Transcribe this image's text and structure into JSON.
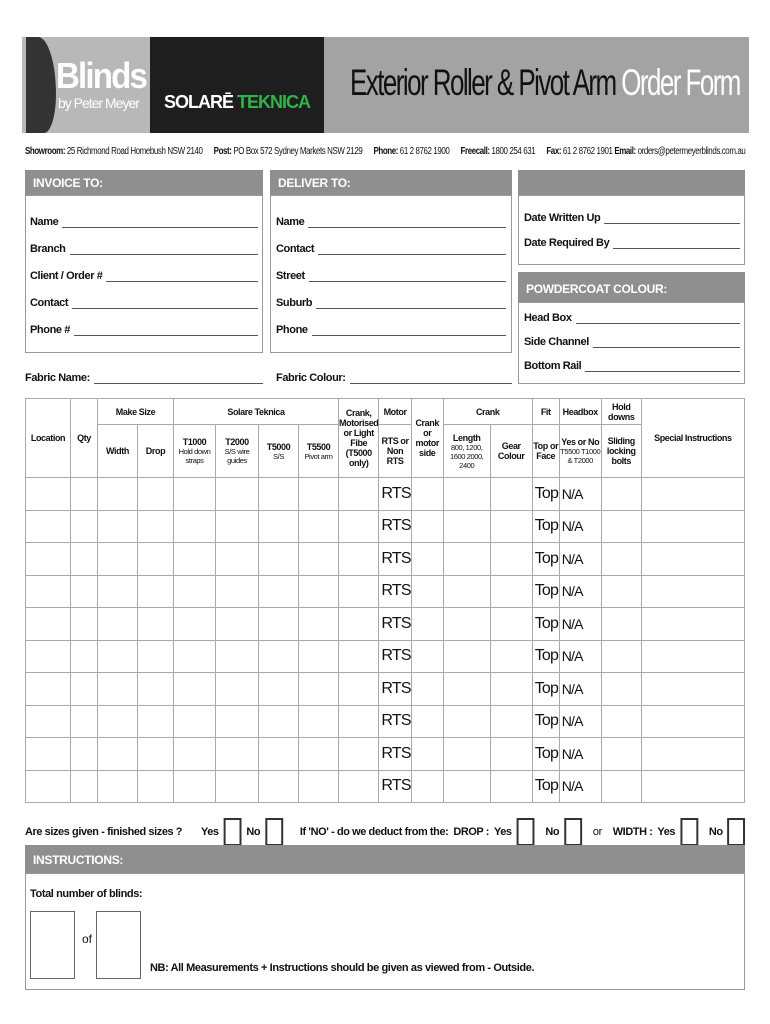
{
  "header": {
    "brand": "Blinds",
    "brand_sub": "by Peter Meyer",
    "partner_a": "SOLARĒ",
    "partner_b": "TEKNICA",
    "title_a": "Exterior Roller & Pivot Arm",
    "title_b": "Order Form"
  },
  "contact": {
    "showroom_label": "Showroom:",
    "showroom": "25 Richmond Road Homebush NSW 2140",
    "post_label": "Post:",
    "post": "PO Box 572 Sydney Markets NSW 2129",
    "phone_label": "Phone:",
    "phone": "61 2 8762 1900",
    "freecall_label": "Freecall:",
    "freecall": "1800 254 631",
    "fax_label": "Fax:",
    "fax": "61 2 8762 1901",
    "email_label": "Email:",
    "email": "orders@petermeyerblinds.com.au"
  },
  "invoice": {
    "title": "INVOICE TO:",
    "fields": [
      "Name",
      "Branch",
      "Client / Order #",
      "Contact",
      "Phone #"
    ]
  },
  "deliver": {
    "title": "DELIVER TO:",
    "fields": [
      "Name",
      "Contact",
      "Street",
      "Suburb",
      "Phone"
    ]
  },
  "dates": {
    "fields": [
      "Date Written Up",
      "Date Required By"
    ]
  },
  "powdercoat": {
    "title": "POWDERCOAT COLOUR:",
    "fields": [
      "Head Box",
      "Side Channel",
      "Bottom Rail"
    ]
  },
  "fabric": {
    "name_label": "Fabric Name:",
    "colour_label": "Fabric Colour:"
  },
  "table": {
    "h": {
      "location": "Location",
      "qty": "Qty",
      "make_size": "Make Size",
      "width": "Width",
      "drop": "Drop",
      "solare": "Solare Teknica",
      "t1000": "T1000",
      "t1000_sub": "Hold down straps",
      "t2000": "T2000",
      "t2000_sub": "S/S wire guides",
      "t5000": "T5000",
      "t5000_sub": "S/S",
      "t5500": "T5500",
      "t5500_sub": "Pivot arm",
      "crank_mot": "Crank, Motorised or Light Fibe (T5000 only)",
      "motor": "Motor",
      "rts": "RTS or Non RTS",
      "crank_side": "Crank or motor side",
      "crank": "Crank",
      "length": "Length",
      "length_sub": "800, 1200, 1600 2000, 2400",
      "gear": "Gear Colour",
      "fit": "Fit",
      "fit_sub": "Top or Face",
      "headbox": "Headbox",
      "headbox_sub": "Yes or No",
      "headbox_sub2": "T5500 T1000 & T2000",
      "holddowns": "Hold downs",
      "holddowns_sub": "Sliding locking bolts",
      "special": "Special Instructions"
    },
    "rows": [
      {
        "rts": "RTS",
        "fit": "Top",
        "headbox": "N/A"
      },
      {
        "rts": "RTS",
        "fit": "Top",
        "headbox": "N/A"
      },
      {
        "rts": "RTS",
        "fit": "Top",
        "headbox": "N/A"
      },
      {
        "rts": "RTS",
        "fit": "Top",
        "headbox": "N/A"
      },
      {
        "rts": "RTS",
        "fit": "Top",
        "headbox": "N/A"
      },
      {
        "rts": "RTS",
        "fit": "Top",
        "headbox": "N/A"
      },
      {
        "rts": "RTS",
        "fit": "Top",
        "headbox": "N/A"
      },
      {
        "rts": "RTS",
        "fit": "Top",
        "headbox": "N/A"
      },
      {
        "rts": "RTS",
        "fit": "Top",
        "headbox": "N/A"
      },
      {
        "rts": "RTS",
        "fit": "Top",
        "headbox": "N/A"
      }
    ]
  },
  "sizes": {
    "question": "Are sizes given - finished sizes ?",
    "yes": "Yes",
    "no": "No",
    "deduct": "If 'NO' - do we deduct from the:",
    "drop": "DROP :",
    "or": "or",
    "width": "WIDTH :"
  },
  "instructions": {
    "title": "INSTRUCTIONS:",
    "total": "Total number of blinds:",
    "of": "of",
    "nb": "NB: All Measurements + Instructions should be given as viewed from - Outside."
  }
}
